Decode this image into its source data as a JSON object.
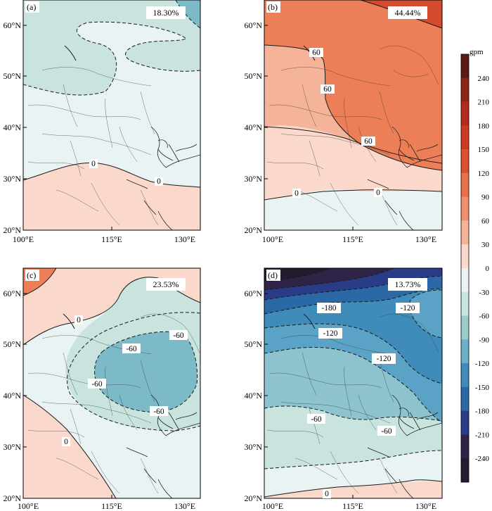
{
  "panels": [
    {
      "id": "a",
      "label": "(a)",
      "percent": "18.30%",
      "contour_labels": [
        "0",
        "0"
      ]
    },
    {
      "id": "b",
      "label": "(b)",
      "percent": "44.44%",
      "contour_labels": [
        "60",
        "60",
        "60",
        "0",
        "0"
      ]
    },
    {
      "id": "c",
      "label": "(c)",
      "percent": "23.53%",
      "contour_labels": [
        "0",
        "-60",
        "-60",
        "-60",
        "-60",
        "0"
      ]
    },
    {
      "id": "d",
      "label": "(d)",
      "percent": "13.73%",
      "contour_labels": [
        "-180",
        "-120",
        "-120",
        "-120",
        "-60",
        "-60",
        "0"
      ]
    }
  ],
  "axes": {
    "lat_ticks": [
      "20°N",
      "30°N",
      "40°N",
      "50°N",
      "60°N"
    ],
    "lon_ticks": [
      "100°E",
      "115°E",
      "130°E"
    ]
  },
  "colorbar": {
    "unit": "gpm",
    "levels": [
      "240",
      "210",
      "180",
      "150",
      "120",
      "90",
      "60",
      "30",
      "0",
      "-30",
      "-60",
      "-90",
      "-120",
      "-150",
      "-180",
      "-210",
      "-240"
    ],
    "colors": [
      "#5a1c14",
      "#8c2418",
      "#b42a1c",
      "#cc3a22",
      "#de5030",
      "#e8714a",
      "#ef916c",
      "#f5b39a",
      "#fbd8cc",
      "#e9f3f3",
      "#c9e4de",
      "#9cccc8",
      "#6cb0c8",
      "#3f8cba",
      "#2a68a6",
      "#2a3c88",
      "#2e2448",
      "#231c2e"
    ]
  },
  "colors": {
    "frame": "#000000",
    "coast": "#222222",
    "contour": "#1a1a1a"
  }
}
